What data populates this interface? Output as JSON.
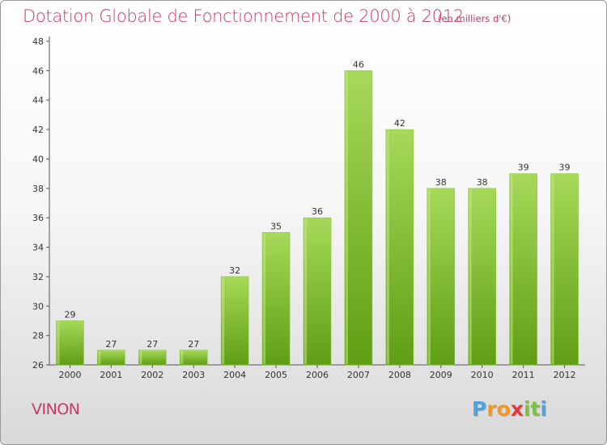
{
  "title": "Dotation Globale de Fonctionnement de 2000 à 2012",
  "subtitle": "(en milliers d'€)",
  "commune": "VINON",
  "brand": {
    "text": "Proxiti",
    "letters": [
      "P",
      "r",
      "o",
      "x",
      "i",
      "t",
      "i"
    ],
    "colors": [
      "#4fa3d8",
      "#f39a1e",
      "#f39a1e",
      "#e13a3a",
      "#7cc142",
      "#7cc142",
      "#4fa3d8"
    ]
  },
  "colors": {
    "title": "#c8366a",
    "bar_light": "#a7d95a",
    "bar_dark": "#5f9e14"
  },
  "chart_data": {
    "type": "bar",
    "title": "Dotation Globale de Fonctionnement de 2000 à 2012",
    "xlabel": "",
    "ylabel": "",
    "categories": [
      "2000",
      "2001",
      "2002",
      "2003",
      "2004",
      "2005",
      "2006",
      "2007",
      "2008",
      "2009",
      "2010",
      "2011",
      "2012"
    ],
    "values": [
      29,
      27,
      27,
      27,
      32,
      35,
      36,
      46,
      42,
      38,
      38,
      39,
      39
    ],
    "ylim": [
      26,
      48
    ],
    "yticks": [
      26,
      28,
      30,
      32,
      34,
      36,
      38,
      40,
      42,
      44,
      46,
      48
    ],
    "grid": false,
    "legend": "none"
  }
}
